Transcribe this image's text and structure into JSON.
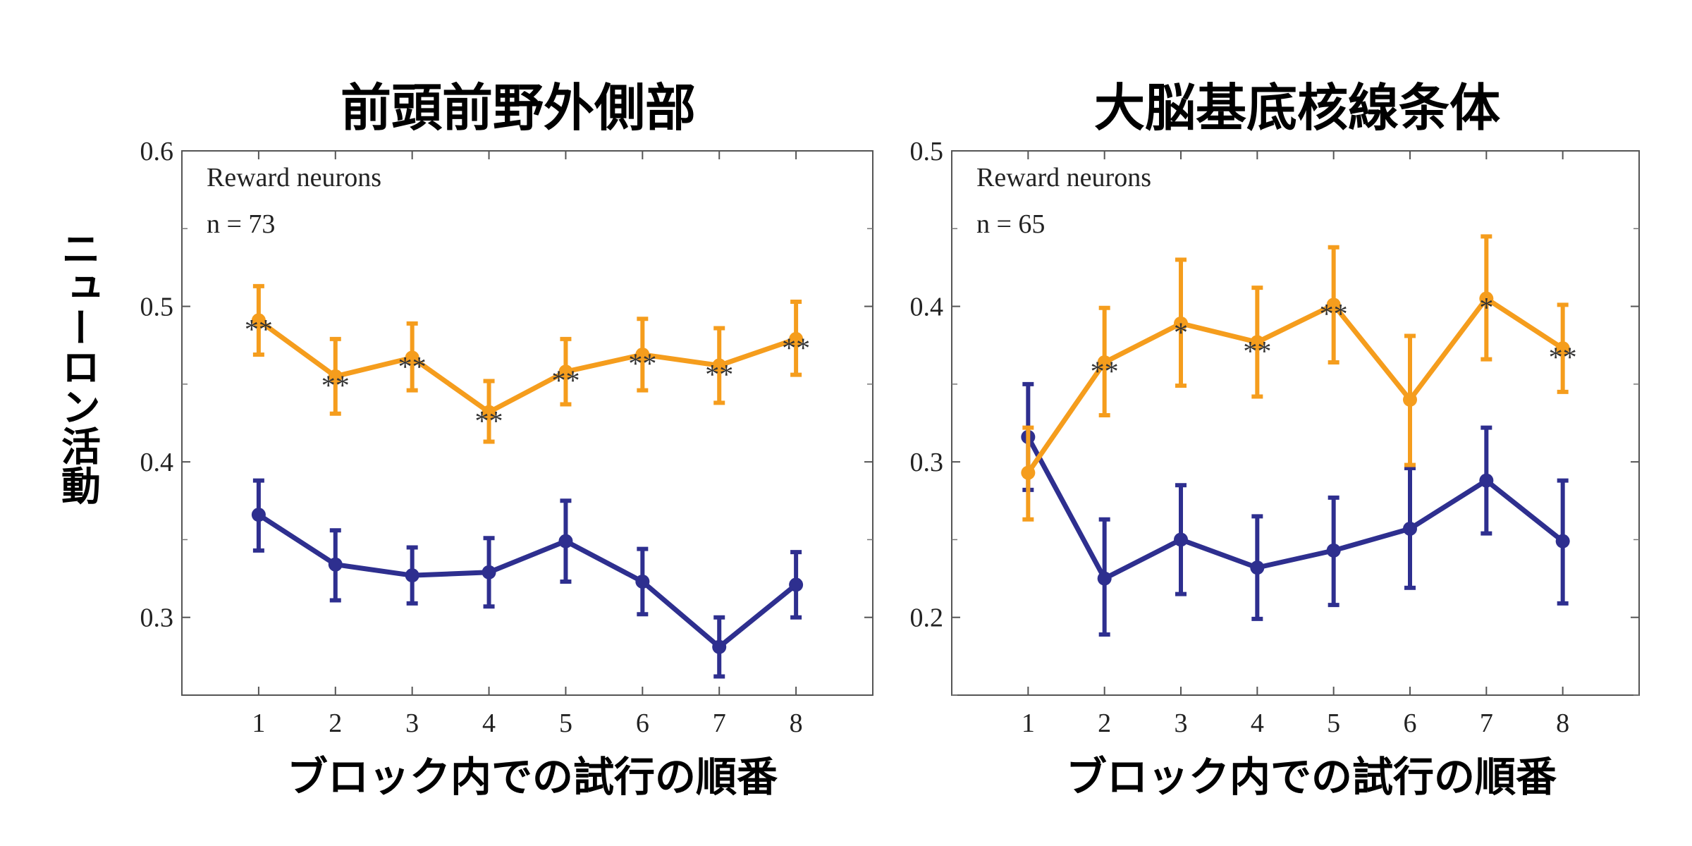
{
  "ylabel": "ニューロン活動",
  "chart_data": [
    {
      "type": "line",
      "title": "前頭前野外側部",
      "xlabel": "ブロック内での試行の順番",
      "annotation": [
        "Reward neurons",
        "n = 73"
      ],
      "x": [
        1,
        2,
        3,
        4,
        5,
        6,
        7,
        8
      ],
      "xlim": [
        0,
        9
      ],
      "ylim": [
        0.25,
        0.6
      ],
      "yticks": [
        0.3,
        0.4,
        0.5,
        0.6
      ],
      "ytick_labels": [
        "0.3",
        "0.4",
        "0.5",
        "0.6"
      ],
      "grid": false,
      "series": [
        {
          "color": "#f59d1d",
          "values": [
            0.491,
            0.455,
            0.467,
            0.432,
            0.458,
            0.469,
            0.462,
            0.479
          ],
          "err_low": [
            0.469,
            0.431,
            0.446,
            0.413,
            0.437,
            0.446,
            0.438,
            0.456
          ],
          "err_high": [
            0.513,
            0.479,
            0.489,
            0.452,
            0.479,
            0.492,
            0.486,
            0.503
          ],
          "significance": [
            "**",
            "**",
            "**",
            "**",
            "**",
            "**",
            "**",
            "**"
          ]
        },
        {
          "color": "#2e2f8f",
          "values": [
            0.366,
            0.334,
            0.327,
            0.329,
            0.349,
            0.323,
            0.281,
            0.321
          ],
          "err_low": [
            0.343,
            0.311,
            0.309,
            0.307,
            0.323,
            0.302,
            0.262,
            0.3
          ],
          "err_high": [
            0.388,
            0.356,
            0.345,
            0.351,
            0.375,
            0.344,
            0.3,
            0.342
          ]
        }
      ]
    },
    {
      "type": "line",
      "title": "大脳基底核線条体",
      "xlabel": "ブロック内での試行の順番",
      "annotation": [
        "Reward neurons",
        "n = 65"
      ],
      "x": [
        1,
        2,
        3,
        4,
        5,
        6,
        7,
        8
      ],
      "xlim": [
        0,
        9
      ],
      "ylim": [
        0.15,
        0.5
      ],
      "yticks": [
        0.2,
        0.3,
        0.4,
        0.5
      ],
      "ytick_labels": [
        "0.2",
        "0.3",
        "0.4",
        "0.5"
      ],
      "grid": false,
      "series": [
        {
          "color": "#f59d1d",
          "values": [
            0.293,
            0.364,
            0.389,
            0.377,
            0.401,
            0.34,
            0.405,
            0.373
          ],
          "err_low": [
            0.263,
            0.33,
            0.349,
            0.342,
            0.364,
            0.298,
            0.366,
            0.345
          ],
          "err_high": [
            0.322,
            0.399,
            0.43,
            0.412,
            0.438,
            0.381,
            0.445,
            0.401
          ],
          "significance": [
            "",
            "**",
            "*",
            "**",
            "**",
            "",
            "*",
            "**"
          ]
        },
        {
          "color": "#2e2f8f",
          "values": [
            0.316,
            0.225,
            0.25,
            0.232,
            0.243,
            0.257,
            0.288,
            0.249
          ],
          "err_low": [
            0.282,
            0.189,
            0.215,
            0.199,
            0.208,
            0.219,
            0.254,
            0.209
          ],
          "err_high": [
            0.35,
            0.263,
            0.285,
            0.265,
            0.277,
            0.296,
            0.322,
            0.288
          ]
        }
      ]
    }
  ]
}
